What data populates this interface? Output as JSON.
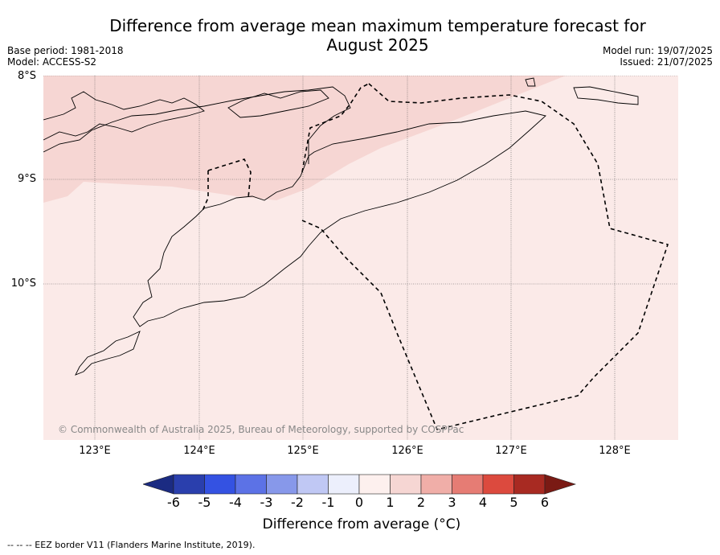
{
  "header": {
    "title_line1": "Difference from average mean maximum temperature forecast for",
    "title_line2": "August 2025",
    "base_period": "Base period: 1981-2018",
    "model": "Model: ACCESS-S2",
    "model_run": "Model run: 19/07/2025",
    "issued": "Issued: 21/07/2025"
  },
  "map": {
    "lat_labels": [
      "8°S",
      "9°S",
      "10°S"
    ],
    "lon_labels": [
      "123°E",
      "124°E",
      "125°E",
      "126°E",
      "127°E",
      "128°E"
    ],
    "copyright": "© Commonwealth of Australia 2025, Bureau of Meteorology, supported by COSPPac",
    "colors": {
      "anomaly_0_1": "#fbeae8",
      "anomaly_1_2": "#f6d6d3",
      "coastline": "#000000",
      "eez": "#000000"
    }
  },
  "colorbar": {
    "ticks": [
      "-6",
      "-5",
      "-4",
      "-3",
      "-2",
      "-1",
      "0",
      "1",
      "2",
      "3",
      "4",
      "5",
      "6"
    ],
    "colors": [
      "#1b2b82",
      "#2a3fad",
      "#3452e2",
      "#5c72e6",
      "#8798ea",
      "#c0c8f4",
      "#eceffc",
      "#fdf0ee",
      "#f6d6d3",
      "#f0aea8",
      "#e67c74",
      "#dc4a3e",
      "#a82a22",
      "#7a1a14"
    ],
    "label": "Difference from average (°C)"
  },
  "footnote": "--  --  -- EEZ border V11 (Flanders Marine Institute, 2019)."
}
